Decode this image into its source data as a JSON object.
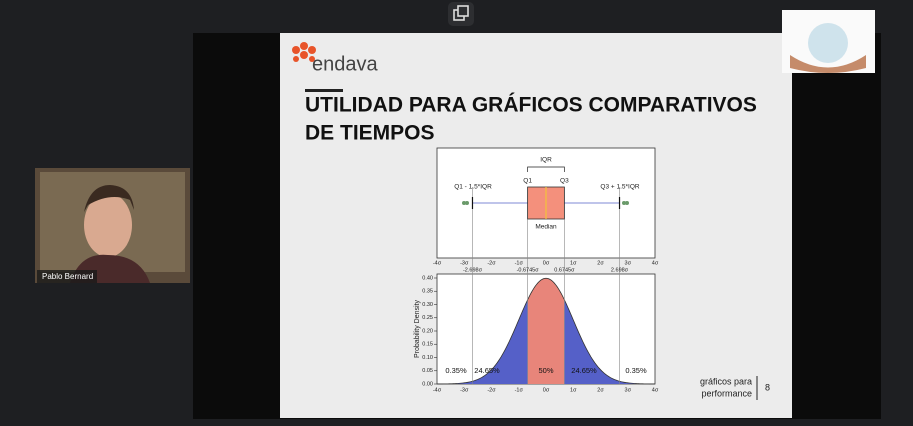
{
  "call": {
    "participant": "Pablo Bernard"
  },
  "slide": {
    "brand": "endava",
    "title_lines": [
      "UTILIDAD PARA GRÁFICOS COMPARATIVOS",
      "DE TIEMPOS"
    ],
    "footer_lines": [
      "gráficos para",
      "performance"
    ],
    "page": "8",
    "figure": {
      "box_labels": {
        "iqr": "IQR",
        "q1": "Q1",
        "q3": "Q3",
        "lower": "Q1 - 1.5*IQR",
        "upper": "Q3 + 1.5*IQR",
        "median": "Median"
      },
      "sigma_ticks": [
        "-4σ",
        "-3σ",
        "-2σ",
        "-1σ",
        "0σ",
        "1σ",
        "2σ",
        "3σ",
        "4σ"
      ],
      "sigma_marks": [
        "-2.698σ",
        "-0.6745σ",
        "0.6745σ",
        "2.698σ"
      ],
      "y_label": "Probability Density",
      "y_ticks": [
        "0.00",
        "0.05",
        "0.10",
        "0.15",
        "0.20",
        "0.25",
        "0.30",
        "0.35",
        "0.40"
      ],
      "areas": [
        "0.35%",
        "24.65%",
        "50%",
        "24.65%",
        "0.35%"
      ]
    }
  }
}
